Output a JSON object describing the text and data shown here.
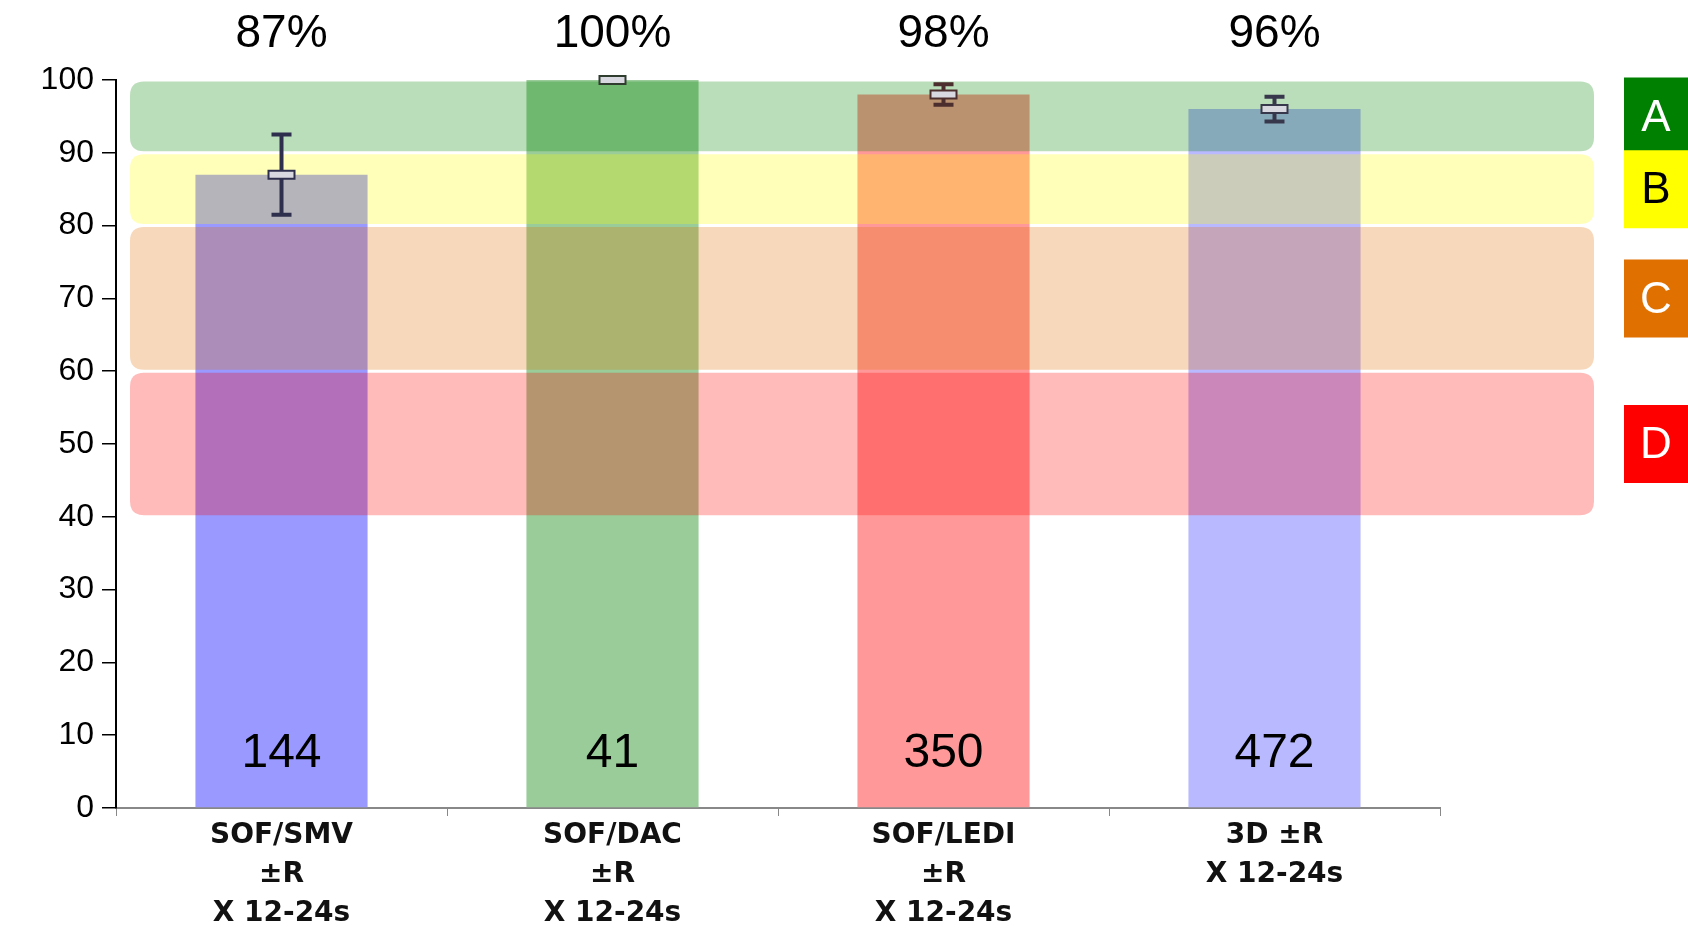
{
  "chart_data": {
    "type": "bar",
    "categories": [
      "SOF/SMV\n±R\nX 12-24s",
      "SOF/DAC\n±R\nX 12-24s",
      "SOF/LEDI\n±R\nX 12-24s",
      "3D ±R\nX 12-24s"
    ],
    "series": [
      {
        "values": [
          87,
          100,
          98,
          96
        ],
        "colors": [
          "#9999ff",
          "#99cc99",
          "#ff9999",
          "#b9b9ff"
        ],
        "value_labels": [
          "87%",
          "100%",
          "98%",
          "96%"
        ]
      },
      {
        "type": "scatter",
        "x": [
          "SOF/SMV\n±R\nX 12-24s",
          "SOF/DAC\n±R\nX 12-24s",
          "SOF/LEDI\n±R\nX 12-24s",
          "3D ±R\nX 12-24s"
        ],
        "values": [
          87,
          100,
          98,
          96
        ],
        "errors": [
          5.5,
          0,
          1.4,
          1.7
        ],
        "colors": [
          "#2e2e4d",
          "#2e3d2e",
          "#4d2e2e",
          "#38384d"
        ],
        "marker": "square"
      }
    ],
    "annotations": [
      "144",
      "41",
      "350",
      "472"
    ],
    "bands": [
      {
        "axis": "y",
        "from": 90,
        "to": 100,
        "label": "A",
        "color": "#008000"
      },
      {
        "axis": "y",
        "from": 80,
        "to": 90,
        "label": "B",
        "color": "#ffff00"
      },
      {
        "axis": "y",
        "from": 60,
        "to": 80,
        "label": "C",
        "color": "#e07000"
      },
      {
        "axis": "y",
        "from": 40,
        "to": 60,
        "label": "D",
        "color": "#ff0000"
      }
    ],
    "ylim": [
      0,
      100
    ],
    "yticks": [
      0,
      10,
      20,
      30,
      40,
      50,
      60,
      70,
      80,
      90,
      100
    ],
    "grid": false
  }
}
